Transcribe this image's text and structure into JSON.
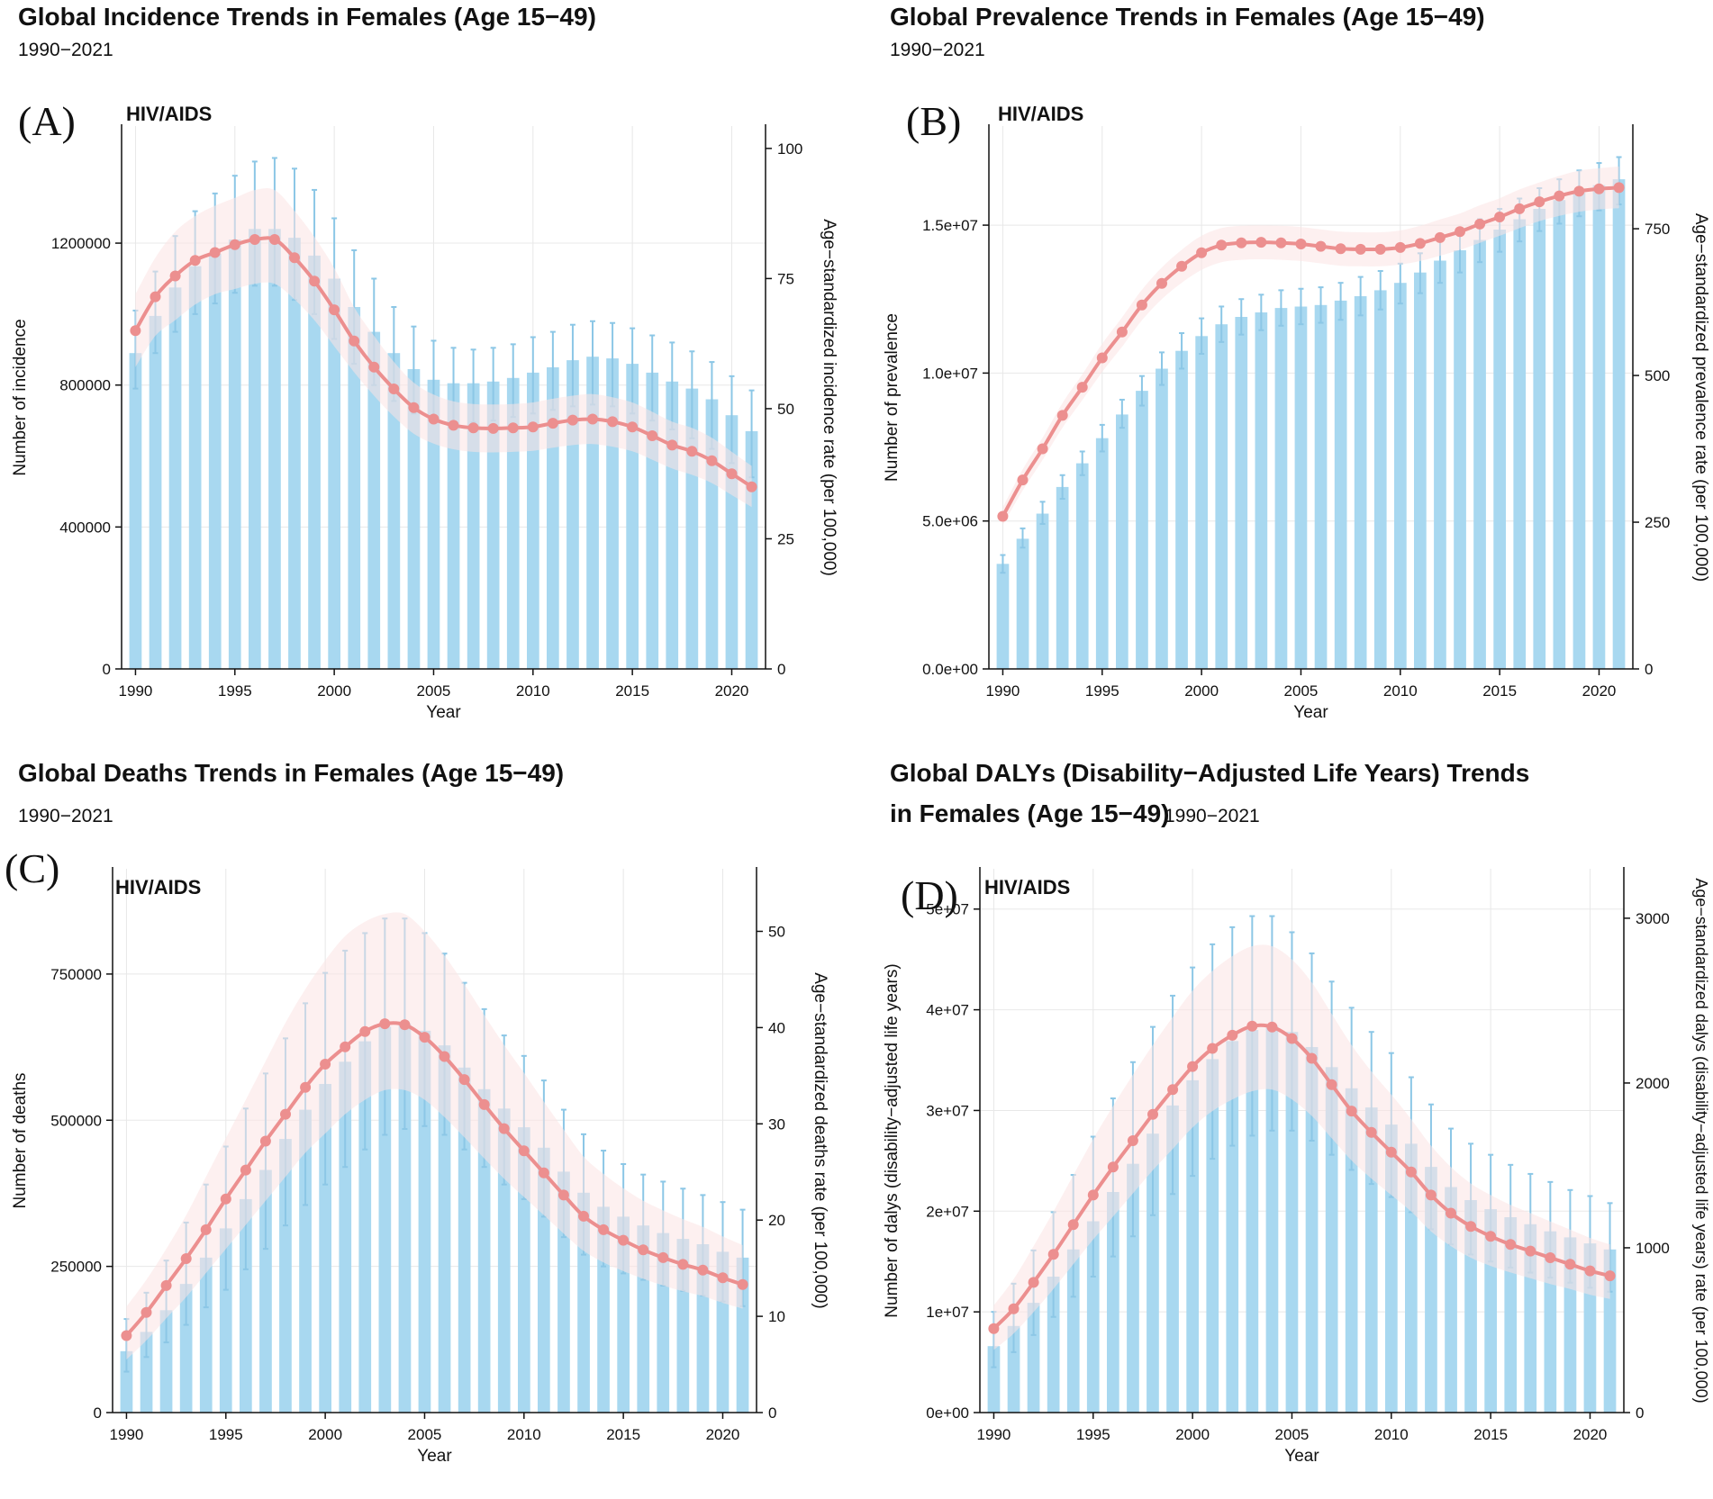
{
  "colors": {
    "bar": "#a8d8f0",
    "bar_error": "#8cc7e6",
    "line": "#ec8f8f",
    "band": "#fbe3e3",
    "grid": "#e8e8e8",
    "axis": "#111111"
  },
  "chart_data": [
    {
      "id": "A",
      "type": "bar+line",
      "title_lines": [
        "Global Incidence Trends in Females (Age 15−49)"
      ],
      "subtitle": "1990−2021",
      "panel_letter": "(A)",
      "cause": "HIV/AIDS",
      "xlabel": "Year",
      "ylabel_left": "Number of incidence",
      "ylabel_right": "Age−standardized incidence rate (per 100,000)",
      "years": [
        1990,
        1991,
        1992,
        1993,
        1994,
        1995,
        1996,
        1997,
        1998,
        1999,
        2000,
        2001,
        2002,
        2003,
        2004,
        2005,
        2006,
        2007,
        2008,
        2009,
        2010,
        2011,
        2012,
        2013,
        2014,
        2015,
        2016,
        2017,
        2018,
        2019,
        2020,
        2021
      ],
      "x_ticks": [
        1990,
        1995,
        2000,
        2005,
        2010,
        2015,
        2020
      ],
      "left_ylim": [
        0,
        1530000
      ],
      "left_ticks": [
        0,
        400000,
        800000,
        1200000
      ],
      "left_tick_labels": [
        "0",
        "400000",
        "800000",
        "1200000"
      ],
      "right_ylim": [
        0,
        104.3
      ],
      "right_ticks": [
        0,
        25,
        50,
        75,
        100
      ],
      "right_tick_labels": [
        "0",
        "25",
        "50",
        "75",
        "100"
      ],
      "bars": [
        890000,
        995000,
        1075000,
        1135000,
        1170000,
        1210000,
        1240000,
        1240000,
        1215000,
        1165000,
        1100000,
        1020000,
        950000,
        890000,
        845000,
        815000,
        805000,
        805000,
        810000,
        820000,
        835000,
        850000,
        870000,
        880000,
        875000,
        860000,
        835000,
        810000,
        790000,
        760000,
        715000,
        670000
      ],
      "bars_lower": [
        790000,
        890000,
        950000,
        1000000,
        1030000,
        1060000,
        1080000,
        1080000,
        1040000,
        1000000,
        930000,
        860000,
        800000,
        755000,
        720000,
        700000,
        695000,
        695000,
        700000,
        710000,
        720000,
        730000,
        740000,
        745000,
        740000,
        720000,
        700000,
        675000,
        650000,
        620000,
        580000,
        540000
      ],
      "bars_upper": [
        1010000,
        1120000,
        1220000,
        1290000,
        1340000,
        1390000,
        1430000,
        1440000,
        1410000,
        1350000,
        1270000,
        1180000,
        1100000,
        1020000,
        965000,
        925000,
        905000,
        900000,
        905000,
        915000,
        935000,
        950000,
        970000,
        980000,
        975000,
        960000,
        940000,
        920000,
        895000,
        865000,
        825000,
        785000
      ],
      "rate": [
        65,
        71.5,
        75.5,
        78.5,
        80,
        81.5,
        82.5,
        82.5,
        79,
        74.5,
        69,
        63,
        58,
        53.8,
        50.2,
        48,
        46.8,
        46.3,
        46.2,
        46.3,
        46.5,
        47.2,
        47.8,
        48,
        47.5,
        46.5,
        44.8,
        43,
        41.8,
        40,
        37.5,
        35
      ],
      "rate_lower": [
        58,
        64,
        67,
        70,
        72,
        73,
        74,
        74,
        71,
        67,
        62,
        57,
        52.5,
        48.5,
        45.2,
        43.3,
        42.2,
        41.7,
        41.6,
        41.7,
        41.9,
        42.5,
        43,
        43.2,
        42.7,
        41.8,
        40.2,
        38.5,
        37.3,
        35.7,
        33.4,
        31.1
      ],
      "rate_upper": [
        72,
        79,
        84,
        87,
        89,
        90.5,
        92,
        92,
        88,
        83,
        77,
        69.5,
        64,
        59,
        55,
        52.7,
        51.4,
        50.9,
        50.8,
        50.9,
        51.2,
        51.9,
        52.5,
        52.8,
        52.2,
        51.2,
        49.4,
        47.5,
        46.3,
        44.4,
        41.7,
        39
      ]
    },
    {
      "id": "B",
      "type": "bar+line",
      "title_lines": [
        "Global Prevalence Trends in Females (Age 15−49)"
      ],
      "subtitle": "1990−2021",
      "panel_letter": "(B)",
      "cause": "HIV/AIDS",
      "xlabel": "Year",
      "ylabel_left": "Number of prevalence",
      "ylabel_right": "Age−standardized prevalence rate (per 100,000)",
      "years": [
        1990,
        1991,
        1992,
        1993,
        1994,
        1995,
        1996,
        1997,
        1998,
        1999,
        2000,
        2001,
        2002,
        2003,
        2004,
        2005,
        2006,
        2007,
        2008,
        2009,
        2010,
        2011,
        2012,
        2013,
        2014,
        2015,
        2016,
        2017,
        2018,
        2019,
        2020,
        2021
      ],
      "x_ticks": [
        1990,
        1995,
        2000,
        2005,
        2010,
        2015,
        2020
      ],
      "left_ylim": [
        0,
        18350000
      ],
      "left_ticks": [
        0,
        5000000,
        10000000,
        15000000
      ],
      "left_tick_labels": [
        "0.0e+00",
        "5.0e+06",
        "1.0e+07",
        "1.5e+07"
      ],
      "right_ylim": [
        0,
        925
      ],
      "right_ticks": [
        0,
        250,
        500,
        750
      ],
      "right_tick_labels": [
        "0",
        "250",
        "500",
        "750"
      ],
      "bars": [
        3550000,
        4400000,
        5250000,
        6150000,
        6950000,
        7800000,
        8600000,
        9400000,
        10150000,
        10750000,
        11250000,
        11650000,
        11900000,
        12050000,
        12200000,
        12250000,
        12300000,
        12450000,
        12600000,
        12800000,
        13050000,
        13400000,
        13800000,
        14150000,
        14500000,
        14850000,
        15200000,
        15550000,
        15850000,
        16100000,
        16350000,
        16550000
      ],
      "bars_lower": [
        3250000,
        4100000,
        4900000,
        5750000,
        6550000,
        7350000,
        8150000,
        8900000,
        9600000,
        10150000,
        10650000,
        11050000,
        11300000,
        11450000,
        11600000,
        11650000,
        11700000,
        11800000,
        11950000,
        12150000,
        12350000,
        12700000,
        13050000,
        13400000,
        13750000,
        14100000,
        14450000,
        14800000,
        15050000,
        15300000,
        15500000,
        15700000
      ],
      "bars_upper": [
        3850000,
        4750000,
        5650000,
        6550000,
        7350000,
        8250000,
        9100000,
        9900000,
        10700000,
        11350000,
        11850000,
        12250000,
        12500000,
        12650000,
        12800000,
        12850000,
        12900000,
        13050000,
        13250000,
        13450000,
        13700000,
        14050000,
        14500000,
        14850000,
        15200000,
        15550000,
        15900000,
        16250000,
        16550000,
        16850000,
        17100000,
        17300000
      ],
      "rate": [
        260,
        322,
        375,
        432,
        480,
        530,
        574,
        620,
        657,
        686,
        709,
        722,
        726,
        727,
        726,
        724,
        720,
        716,
        715,
        715,
        718,
        725,
        735,
        745,
        758,
        770,
        784,
        796,
        806,
        814,
        818,
        820
      ],
      "rate_lower": [
        245,
        304,
        356,
        411,
        458,
        506,
        549,
        594,
        630,
        658,
        680,
        693,
        697,
        698,
        697,
        695,
        691,
        687,
        686,
        686,
        689,
        695,
        704,
        714,
        726,
        738,
        751,
        763,
        772,
        779,
        783,
        785
      ],
      "rate_upper": [
        275,
        340,
        394,
        453,
        502,
        554,
        599,
        646,
        684,
        714,
        738,
        751,
        755,
        756,
        755,
        753,
        749,
        745,
        744,
        744,
        747,
        755,
        766,
        776,
        790,
        802,
        817,
        829,
        840,
        849,
        853,
        856
      ]
    },
    {
      "id": "C",
      "type": "bar+line",
      "title_lines": [
        "Global Deaths Trends in Females (Age 15−49)"
      ],
      "subtitle": "1990−2021",
      "panel_letter": "(C)",
      "cause": "HIV/AIDS",
      "xlabel": "Year",
      "ylabel_left": "Number of deaths",
      "ylabel_right": "Age−standardized deaths rate (per 100,000)",
      "years": [
        1990,
        1991,
        1992,
        1993,
        1994,
        1995,
        1996,
        1997,
        1998,
        1999,
        2000,
        2001,
        2002,
        2003,
        2004,
        2005,
        2006,
        2007,
        2008,
        2009,
        2010,
        2011,
        2012,
        2013,
        2014,
        2015,
        2016,
        2017,
        2018,
        2019,
        2020,
        2021
      ],
      "x_ticks": [
        1990,
        1995,
        2000,
        2005,
        2010,
        2015,
        2020
      ],
      "left_ylim": [
        0,
        930000
      ],
      "left_ticks": [
        0,
        250000,
        500000,
        750000
      ],
      "left_tick_labels": [
        "0",
        "250000",
        "500000",
        "750000"
      ],
      "right_ylim": [
        0,
        56.5
      ],
      "right_ticks": [
        0,
        10,
        20,
        30,
        40,
        50
      ],
      "right_tick_labels": [
        "0",
        "10",
        "20",
        "30",
        "40",
        "50"
      ],
      "bars": [
        105000,
        138000,
        175000,
        220000,
        265000,
        315000,
        365000,
        415000,
        468000,
        518000,
        562000,
        600000,
        635000,
        660000,
        665000,
        653000,
        628000,
        590000,
        553000,
        520000,
        488000,
        453000,
        412000,
        376000,
        352000,
        335000,
        320000,
        307000,
        297000,
        288000,
        275000,
        265000
      ],
      "bars_lower": [
        70000,
        95000,
        120000,
        150000,
        180000,
        210000,
        245000,
        280000,
        320000,
        355000,
        390000,
        420000,
        450000,
        475000,
        485000,
        490000,
        475000,
        450000,
        420000,
        390000,
        365000,
        335000,
        300000,
        270000,
        250000,
        238000,
        227000,
        217000,
        208000,
        200000,
        190000,
        182000
      ],
      "bars_upper": [
        160000,
        205000,
        260000,
        325000,
        390000,
        455000,
        520000,
        580000,
        640000,
        700000,
        752000,
        790000,
        820000,
        845000,
        845000,
        820000,
        785000,
        735000,
        690000,
        645000,
        610000,
        568000,
        518000,
        476000,
        448000,
        425000,
        407000,
        395000,
        383000,
        372000,
        360000,
        347000
      ],
      "rate": [
        8,
        10.4,
        13.2,
        16,
        19,
        22.2,
        25.2,
        28.2,
        31,
        33.8,
        36.2,
        38,
        39.6,
        40.4,
        40.3,
        39,
        37,
        34.6,
        32,
        29.5,
        27.2,
        24.9,
        22.6,
        20.4,
        19,
        17.9,
        16.9,
        16.1,
        15.4,
        14.8,
        14,
        13.3
      ],
      "rate_lower": [
        5.5,
        7.5,
        9.8,
        12,
        14.5,
        17,
        19.5,
        22,
        24.5,
        27,
        29,
        31,
        32.5,
        33.5,
        33.5,
        32.5,
        30.7,
        28.6,
        26.4,
        24.3,
        22.4,
        20.5,
        18.6,
        16.8,
        15.6,
        14.7,
        13.9,
        13.2,
        12.6,
        12.1,
        11.4,
        10.8
      ],
      "rate_upper": [
        11,
        13.8,
        17,
        20.5,
        24.5,
        28.5,
        32.5,
        36.5,
        40.5,
        44,
        47,
        49.5,
        51,
        51.8,
        51.8,
        50,
        47.5,
        44.5,
        41.3,
        38.2,
        35.3,
        32.3,
        29.4,
        26.6,
        24.8,
        23.3,
        22,
        21,
        20.1,
        19.3,
        18.3,
        17.4
      ]
    },
    {
      "id": "D",
      "type": "bar+line",
      "title_lines": [
        "Global DALYs (Disability−Adjusted Life Years) Trends",
        "in Females (Age 15−49)"
      ],
      "subtitle": "1990−2021",
      "panel_letter": "(D)",
      "cause": "HIV/AIDS",
      "xlabel": "Year",
      "ylabel_left": "Number of dalys (disability−adjusted life years)",
      "ylabel_right": "Age−standardized dalys (disability−adjusted life years) rate (per 100,000)",
      "years": [
        1990,
        1991,
        1992,
        1993,
        1994,
        1995,
        1996,
        1997,
        1998,
        1999,
        2000,
        2001,
        2002,
        2003,
        2004,
        2005,
        2006,
        2007,
        2008,
        2009,
        2010,
        2011,
        2012,
        2013,
        2014,
        2015,
        2016,
        2017,
        2018,
        2019,
        2020,
        2021
      ],
      "x_ticks": [
        1990,
        1995,
        2000,
        2005,
        2010,
        2015,
        2020
      ],
      "left_ylim": [
        0,
        54000000
      ],
      "left_ticks": [
        0,
        10000000,
        20000000,
        30000000,
        40000000,
        50000000
      ],
      "left_tick_labels": [
        "0e+00",
        "1e+07",
        "2e+07",
        "3e+07",
        "4e+07",
        "5e+07"
      ],
      "right_ylim": [
        0,
        3300
      ],
      "right_ticks": [
        0,
        1000,
        2000,
        3000
      ],
      "right_tick_labels": [
        "0",
        "1000",
        "2000",
        "3000"
      ],
      "bars": [
        6600000,
        8600000,
        10900000,
        13500000,
        16200000,
        19000000,
        21900000,
        24700000,
        27700000,
        30500000,
        33000000,
        35100000,
        36900000,
        38000000,
        38400000,
        37800000,
        36300000,
        34300000,
        32200000,
        30300000,
        28600000,
        26700000,
        24400000,
        22400000,
        21100000,
        20200000,
        19400000,
        18700000,
        18000000,
        17400000,
        16800000,
        16200000
      ],
      "bars_lower": [
        4500000,
        6000000,
        7700000,
        9500000,
        11500000,
        13500000,
        15500000,
        17500000,
        19600000,
        21700000,
        23500000,
        25200000,
        26500000,
        27500000,
        28000000,
        28000000,
        27000000,
        25600000,
        24100000,
        22700000,
        21400000,
        19900000,
        18200000,
        16700000,
        15700000,
        15000000,
        14400000,
        13900000,
        13400000,
        12900000,
        12400000,
        12000000
      ],
      "bars_upper": [
        10000000,
        12800000,
        16100000,
        19900000,
        23600000,
        27400000,
        31200000,
        34800000,
        38300000,
        41400000,
        44200000,
        46500000,
        48200000,
        49300000,
        49300000,
        47700000,
        45600000,
        42800000,
        40200000,
        37800000,
        35700000,
        33300000,
        30600000,
        28200000,
        26700000,
        25600000,
        24600000,
        23700000,
        22900000,
        22100000,
        21500000,
        20800000
      ],
      "rate": [
        510,
        630,
        790,
        960,
        1140,
        1320,
        1490,
        1650,
        1810,
        1960,
        2100,
        2210,
        2290,
        2345,
        2340,
        2270,
        2150,
        1990,
        1830,
        1700,
        1580,
        1460,
        1320,
        1210,
        1130,
        1070,
        1020,
        980,
        940,
        900,
        860,
        830
      ],
      "rate_lower": [
        380,
        480,
        610,
        750,
        900,
        1050,
        1190,
        1330,
        1470,
        1600,
        1730,
        1830,
        1900,
        1950,
        1960,
        1900,
        1800,
        1665,
        1530,
        1420,
        1320,
        1220,
        1100,
        1010,
        940,
        890,
        850,
        815,
        780,
        750,
        715,
        690
      ],
      "rate_upper": [
        650,
        810,
        1010,
        1220,
        1440,
        1660,
        1860,
        2050,
        2230,
        2400,
        2560,
        2680,
        2770,
        2830,
        2830,
        2750,
        2610,
        2420,
        2230,
        2070,
        1930,
        1780,
        1620,
        1490,
        1390,
        1320,
        1260,
        1210,
        1160,
        1110,
        1060,
        1020
      ]
    }
  ]
}
